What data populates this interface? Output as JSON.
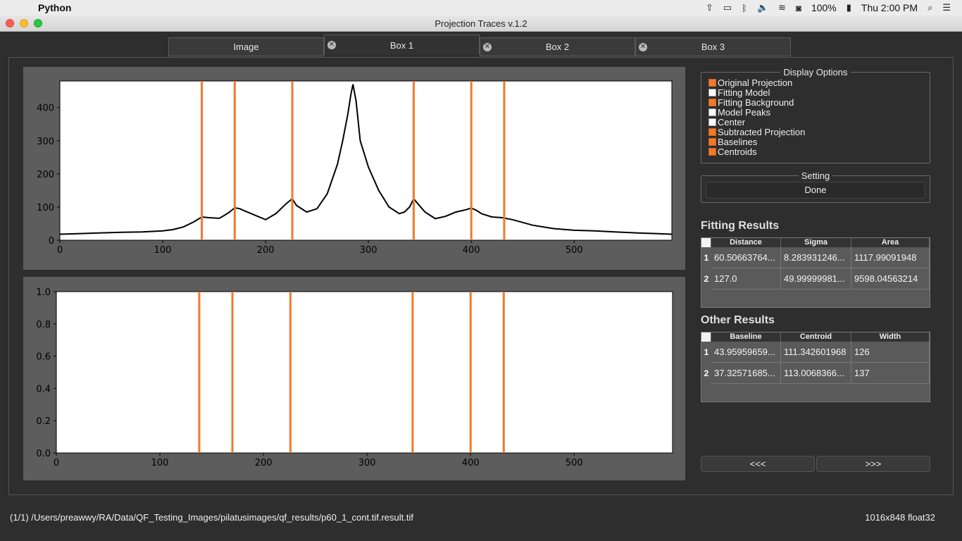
{
  "menubar": {
    "app_name": "Python",
    "battery": "100%",
    "clock": "Thu 2:00 PM"
  },
  "window": {
    "title": "Projection Traces v.1.2"
  },
  "tabs": [
    {
      "label": "Image",
      "closable": false
    },
    {
      "label": "Box 1",
      "closable": true,
      "active": true
    },
    {
      "label": "Box 2",
      "closable": true
    },
    {
      "label": "Box 3",
      "closable": true
    }
  ],
  "display_options": {
    "title": "Display Options",
    "items": [
      {
        "label": "Original Projection",
        "checked": true
      },
      {
        "label": "Fitting Model",
        "checked": false
      },
      {
        "label": "Fitting Background",
        "checked": true
      },
      {
        "label": "Model Peaks",
        "checked": false
      },
      {
        "label": "Center",
        "checked": false
      },
      {
        "label": "Subtracted Projection",
        "checked": true
      },
      {
        "label": "Baselines",
        "checked": true
      },
      {
        "label": "Centroids",
        "checked": true
      }
    ]
  },
  "setting": {
    "title": "Setting",
    "button": "Done"
  },
  "fitting_results": {
    "title": "Fitting Results",
    "columns": [
      "Distance",
      "Sigma",
      "Area"
    ],
    "rows": [
      {
        "num": "1",
        "cells": [
          "60.50663764...",
          "8.283931246...",
          "1117.99091948"
        ]
      },
      {
        "num": "2",
        "cells": [
          "127.0",
          "49.99999981...",
          "9598.04563214"
        ]
      }
    ]
  },
  "other_results": {
    "title": "Other Results",
    "columns": [
      "Baseline",
      "Centroid",
      "Width"
    ],
    "rows": [
      {
        "num": "1",
        "cells": [
          "43.95959659...",
          "111.342601968",
          "126"
        ]
      },
      {
        "num": "2",
        "cells": [
          "37.32571685...",
          "113.0068366...",
          "137"
        ]
      }
    ]
  },
  "nav": {
    "prev": "<<<",
    "next": ">>>"
  },
  "status": {
    "path": "(1/1) /Users/preawwy/RA/Data/QF_Testing_Images/pilatusimages/qf_results/p60_1_cont.tif.result.tif",
    "image_info": "1016x848 float32"
  },
  "colors": {
    "accent": "#f07a2a",
    "line": "#000000"
  },
  "chart_data": [
    {
      "type": "line",
      "xlim": [
        0,
        595
      ],
      "ylim": [
        0,
        480
      ],
      "xticks": [
        0,
        100,
        200,
        300,
        400,
        500
      ],
      "yticks": [
        0,
        100,
        200,
        300,
        400
      ],
      "vlines": [
        138,
        170,
        226,
        344,
        400,
        432
      ],
      "series": [
        {
          "x": [
            0,
            20,
            40,
            60,
            80,
            100,
            110,
            120,
            130,
            138,
            145,
            155,
            160,
            165,
            170,
            175,
            180,
            190,
            200,
            210,
            220,
            226,
            230,
            240,
            250,
            260,
            265,
            270,
            275,
            280,
            283,
            285,
            288,
            292,
            300,
            310,
            320,
            330,
            335,
            340,
            344,
            348,
            355,
            365,
            375,
            385,
            395,
            400,
            405,
            410,
            420,
            430,
            440,
            460,
            480,
            500,
            520,
            540,
            560,
            580,
            595
          ],
          "y": [
            18,
            20,
            22,
            24,
            25,
            28,
            32,
            40,
            55,
            70,
            68,
            66,
            75,
            85,
            98,
            95,
            88,
            75,
            62,
            80,
            110,
            125,
            105,
            85,
            95,
            140,
            185,
            230,
            300,
            380,
            440,
            470,
            420,
            300,
            220,
            150,
            100,
            80,
            85,
            100,
            125,
            110,
            85,
            65,
            72,
            85,
            92,
            97,
            90,
            80,
            70,
            68,
            62,
            45,
            35,
            30,
            28,
            25,
            22,
            20,
            18
          ]
        }
      ]
    },
    {
      "type": "line",
      "xlim": [
        0,
        595
      ],
      "ylim": [
        0,
        1.0
      ],
      "xticks": [
        0,
        100,
        200,
        300,
        400,
        500
      ],
      "yticks": [
        0.0,
        0.2,
        0.4,
        0.6,
        0.8,
        1.0
      ],
      "vlines": [
        138,
        170,
        226,
        344,
        400,
        432
      ],
      "series": []
    }
  ]
}
